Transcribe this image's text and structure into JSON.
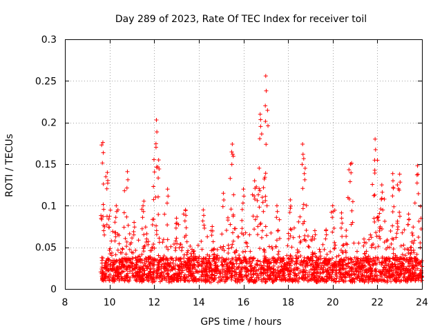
{
  "chart_data": {
    "type": "scatter",
    "title": "Day 289 of 2023, Rate Of TEC Index for receiver toil",
    "xlabel": "GPS time / hours",
    "ylabel": "ROTI / TECUs",
    "xlim": [
      8,
      24
    ],
    "ylim": [
      0,
      0.3
    ],
    "xticks": [
      8,
      10,
      12,
      14,
      16,
      18,
      20,
      22,
      24
    ],
    "xtick_labels": [
      "8",
      "10",
      "12",
      "14",
      "16",
      "18",
      "20",
      "22",
      "24"
    ],
    "yticks": [
      0,
      0.05,
      0.1,
      0.15,
      0.2,
      0.25,
      0.3
    ],
    "ytick_labels": [
      "0",
      "0.05",
      "0.1",
      "0.15",
      "0.2",
      "0.25",
      "0.3"
    ],
    "grid": true,
    "marker": "+",
    "color": "#ff0000",
    "series": [
      {
        "name": "ROTI",
        "x_start": 9.6,
        "x_end": 24.0,
        "baseline": 0.022,
        "peaks": [
          {
            "x": 9.7,
            "y": 0.176
          },
          {
            "x": 9.9,
            "y": 0.14
          },
          {
            "x": 10.3,
            "y": 0.1
          },
          {
            "x": 10.8,
            "y": 0.141
          },
          {
            "x": 11.1,
            "y": 0.08
          },
          {
            "x": 11.5,
            "y": 0.1
          },
          {
            "x": 12.1,
            "y": 0.203
          },
          {
            "x": 12.2,
            "y": 0.155
          },
          {
            "x": 12.6,
            "y": 0.12
          },
          {
            "x": 13.0,
            "y": 0.085
          },
          {
            "x": 13.4,
            "y": 0.095
          },
          {
            "x": 14.2,
            "y": 0.095
          },
          {
            "x": 14.6,
            "y": 0.075
          },
          {
            "x": 15.1,
            "y": 0.115
          },
          {
            "x": 15.5,
            "y": 0.174
          },
          {
            "x": 16.0,
            "y": 0.12
          },
          {
            "x": 16.5,
            "y": 0.13
          },
          {
            "x": 16.75,
            "y": 0.21
          },
          {
            "x": 17.0,
            "y": 0.256
          },
          {
            "x": 17.5,
            "y": 0.1
          },
          {
            "x": 18.1,
            "y": 0.107
          },
          {
            "x": 18.65,
            "y": 0.174
          },
          {
            "x": 19.2,
            "y": 0.07
          },
          {
            "x": 19.7,
            "y": 0.07
          },
          {
            "x": 20.0,
            "y": 0.1
          },
          {
            "x": 20.4,
            "y": 0.085
          },
          {
            "x": 20.8,
            "y": 0.15
          },
          {
            "x": 21.4,
            "y": 0.06
          },
          {
            "x": 21.9,
            "y": 0.18
          },
          {
            "x": 22.2,
            "y": 0.125
          },
          {
            "x": 22.7,
            "y": 0.13
          },
          {
            "x": 23.0,
            "y": 0.138
          },
          {
            "x": 23.4,
            "y": 0.09
          },
          {
            "x": 23.8,
            "y": 0.148
          }
        ]
      }
    ]
  }
}
